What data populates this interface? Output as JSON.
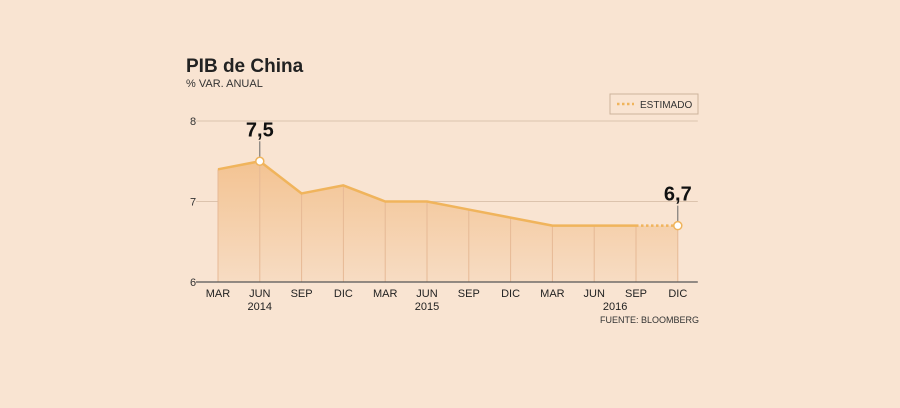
{
  "colors": {
    "background": "#f9e4d2",
    "line": "#f0b45c",
    "area_top": "#f3c392",
    "area_bottom": "#f7dcc3",
    "grid": "#dcc3ad"
  },
  "chart_data": {
    "type": "area",
    "title": "PIB de China",
    "subtitle": "% VAR. ANUAL",
    "categories": [
      "MAR",
      "JUN",
      "SEP",
      "DIC",
      "MAR",
      "JUN",
      "SEP",
      "DIC",
      "MAR",
      "JUN",
      "SEP",
      "DIC"
    ],
    "years": [
      {
        "label": "2014",
        "under_index": 1
      },
      {
        "label": "2015",
        "under_index": 5
      },
      {
        "label": "2016",
        "under_index": 9.5
      }
    ],
    "values": [
      7.4,
      7.5,
      7.1,
      7.2,
      7.0,
      7.0,
      6.9,
      6.8,
      6.7,
      6.7,
      6.7,
      6.7
    ],
    "estimated_from_index": 10,
    "ylim": [
      6,
      8
    ],
    "yticks": [
      6,
      7,
      8
    ],
    "grid": true,
    "annotations": [
      {
        "index": 1,
        "text": "7,5"
      },
      {
        "index": 11,
        "text": "6,7"
      }
    ],
    "legend": {
      "label": "ESTIMADO",
      "position": "top-right"
    },
    "source": "FUENTE: BLOOMBERG"
  }
}
